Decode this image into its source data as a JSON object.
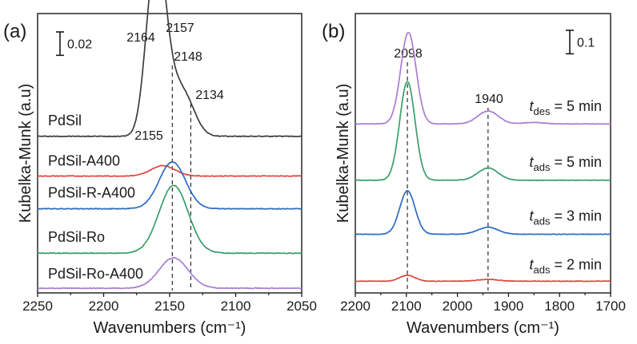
{
  "chart_data": [
    {
      "type": "line",
      "panel_label": "(a)",
      "xlabel": "Wavenumbers (cm⁻¹)",
      "ylabel": "Kubelka-Munk (a.u)",
      "xlim": [
        2250,
        2050
      ],
      "x_ticks": [
        2250,
        2200,
        2150,
        2100,
        2050
      ],
      "x_tick_labels": [
        "2250",
        "2200",
        "2150",
        "2100",
        "2050"
      ],
      "y_ticks_shown": false,
      "grid": false,
      "scale_bar": {
        "label": "0.02",
        "value": 0.02
      },
      "reference_lines": [
        {
          "x": 2148,
          "label": "2148",
          "style": "dashed"
        },
        {
          "x": 2134,
          "label": "2134",
          "style": "dashed"
        }
      ],
      "annotations": [
        {
          "x": 2164,
          "label": "2164"
        },
        {
          "x": 2157,
          "label": "2157"
        },
        {
          "x": 2155,
          "label": "2155"
        }
      ],
      "series": [
        {
          "name": "PdSil",
          "color": "#3c3c3c",
          "offset": 0.13,
          "peaks": [
            {
              "center": 2164,
              "height": 0.085,
              "width": 6
            },
            {
              "center": 2157,
              "height": 0.093,
              "width": 6
            },
            {
              "center": 2145,
              "height": 0.04,
              "width": 9
            },
            {
              "center": 2134,
              "height": 0.01,
              "width": 7
            }
          ]
        },
        {
          "name": "PdSil-A400",
          "color": "#e0453c",
          "offset": 0.096,
          "peaks": [
            {
              "center": 2155,
              "height": 0.009,
              "width": 9
            }
          ]
        },
        {
          "name": "PdSil-R-A400",
          "color": "#2d6bc4",
          "offset": 0.068,
          "peaks": [
            {
              "center": 2148,
              "height": 0.04,
              "width": 10
            }
          ]
        },
        {
          "name": "PdSil-Ro",
          "color": "#3a9e68",
          "offset": 0.03,
          "peaks": [
            {
              "center": 2147,
              "height": 0.058,
              "width": 11
            }
          ]
        },
        {
          "name": "PdSil-Ro-A400",
          "color": "#a97cd4",
          "offset": 0.0,
          "peaks": [
            {
              "center": 2147,
              "height": 0.026,
              "width": 11
            }
          ]
        }
      ]
    },
    {
      "type": "line",
      "panel_label": "(b)",
      "xlabel": "Wavenumbers (cm⁻¹)",
      "ylabel": "Kubelka-Munk (a.u)",
      "xlim": [
        2200,
        1700
      ],
      "x_ticks": [
        2200,
        2100,
        2000,
        1900,
        1800,
        1700
      ],
      "x_tick_labels": [
        "2200",
        "2100",
        "2000",
        "1900",
        "1800",
        "1700"
      ],
      "y_ticks_shown": false,
      "grid": false,
      "scale_bar": {
        "label": "0.1",
        "value": 0.1
      },
      "reference_lines": [
        {
          "x": 2098,
          "label": "2098",
          "style": "dashed"
        },
        {
          "x": 1940,
          "label": "1940",
          "style": "dashed"
        }
      ],
      "series": [
        {
          "name": "t_des = 5 min",
          "label_parts": [
            "t",
            "des",
            " = 5 min"
          ],
          "color": "#a97cd4",
          "offset": 0.69,
          "peaks": [
            {
              "center": 2096,
              "height": 0.39,
              "width": 15
            },
            {
              "center": 1940,
              "height": 0.055,
              "width": 20
            },
            {
              "center": 1850,
              "height": 0.006,
              "width": 20
            }
          ]
        },
        {
          "name": "t_ads = 5 min",
          "label_parts": [
            "t",
            "ads",
            " = 5 min"
          ],
          "color": "#3a9e68",
          "offset": 0.45,
          "peaks": [
            {
              "center": 2098,
              "height": 0.42,
              "width": 15
            },
            {
              "center": 1940,
              "height": 0.052,
              "width": 20
            }
          ]
        },
        {
          "name": "t_ads = 3 min",
          "label_parts": [
            "t",
            "ads",
            " = 3 min"
          ],
          "color": "#2d6bc4",
          "offset": 0.22,
          "peaks": [
            {
              "center": 2098,
              "height": 0.185,
              "width": 15
            },
            {
              "center": 1940,
              "height": 0.03,
              "width": 20
            }
          ]
        },
        {
          "name": "t_ads = 2 min",
          "label_parts": [
            "t",
            "ads",
            " = 2 min"
          ],
          "color": "#e0453c",
          "offset": 0.02,
          "peaks": [
            {
              "center": 2098,
              "height": 0.025,
              "width": 15
            },
            {
              "center": 1940,
              "height": 0.008,
              "width": 20
            }
          ]
        }
      ]
    }
  ]
}
